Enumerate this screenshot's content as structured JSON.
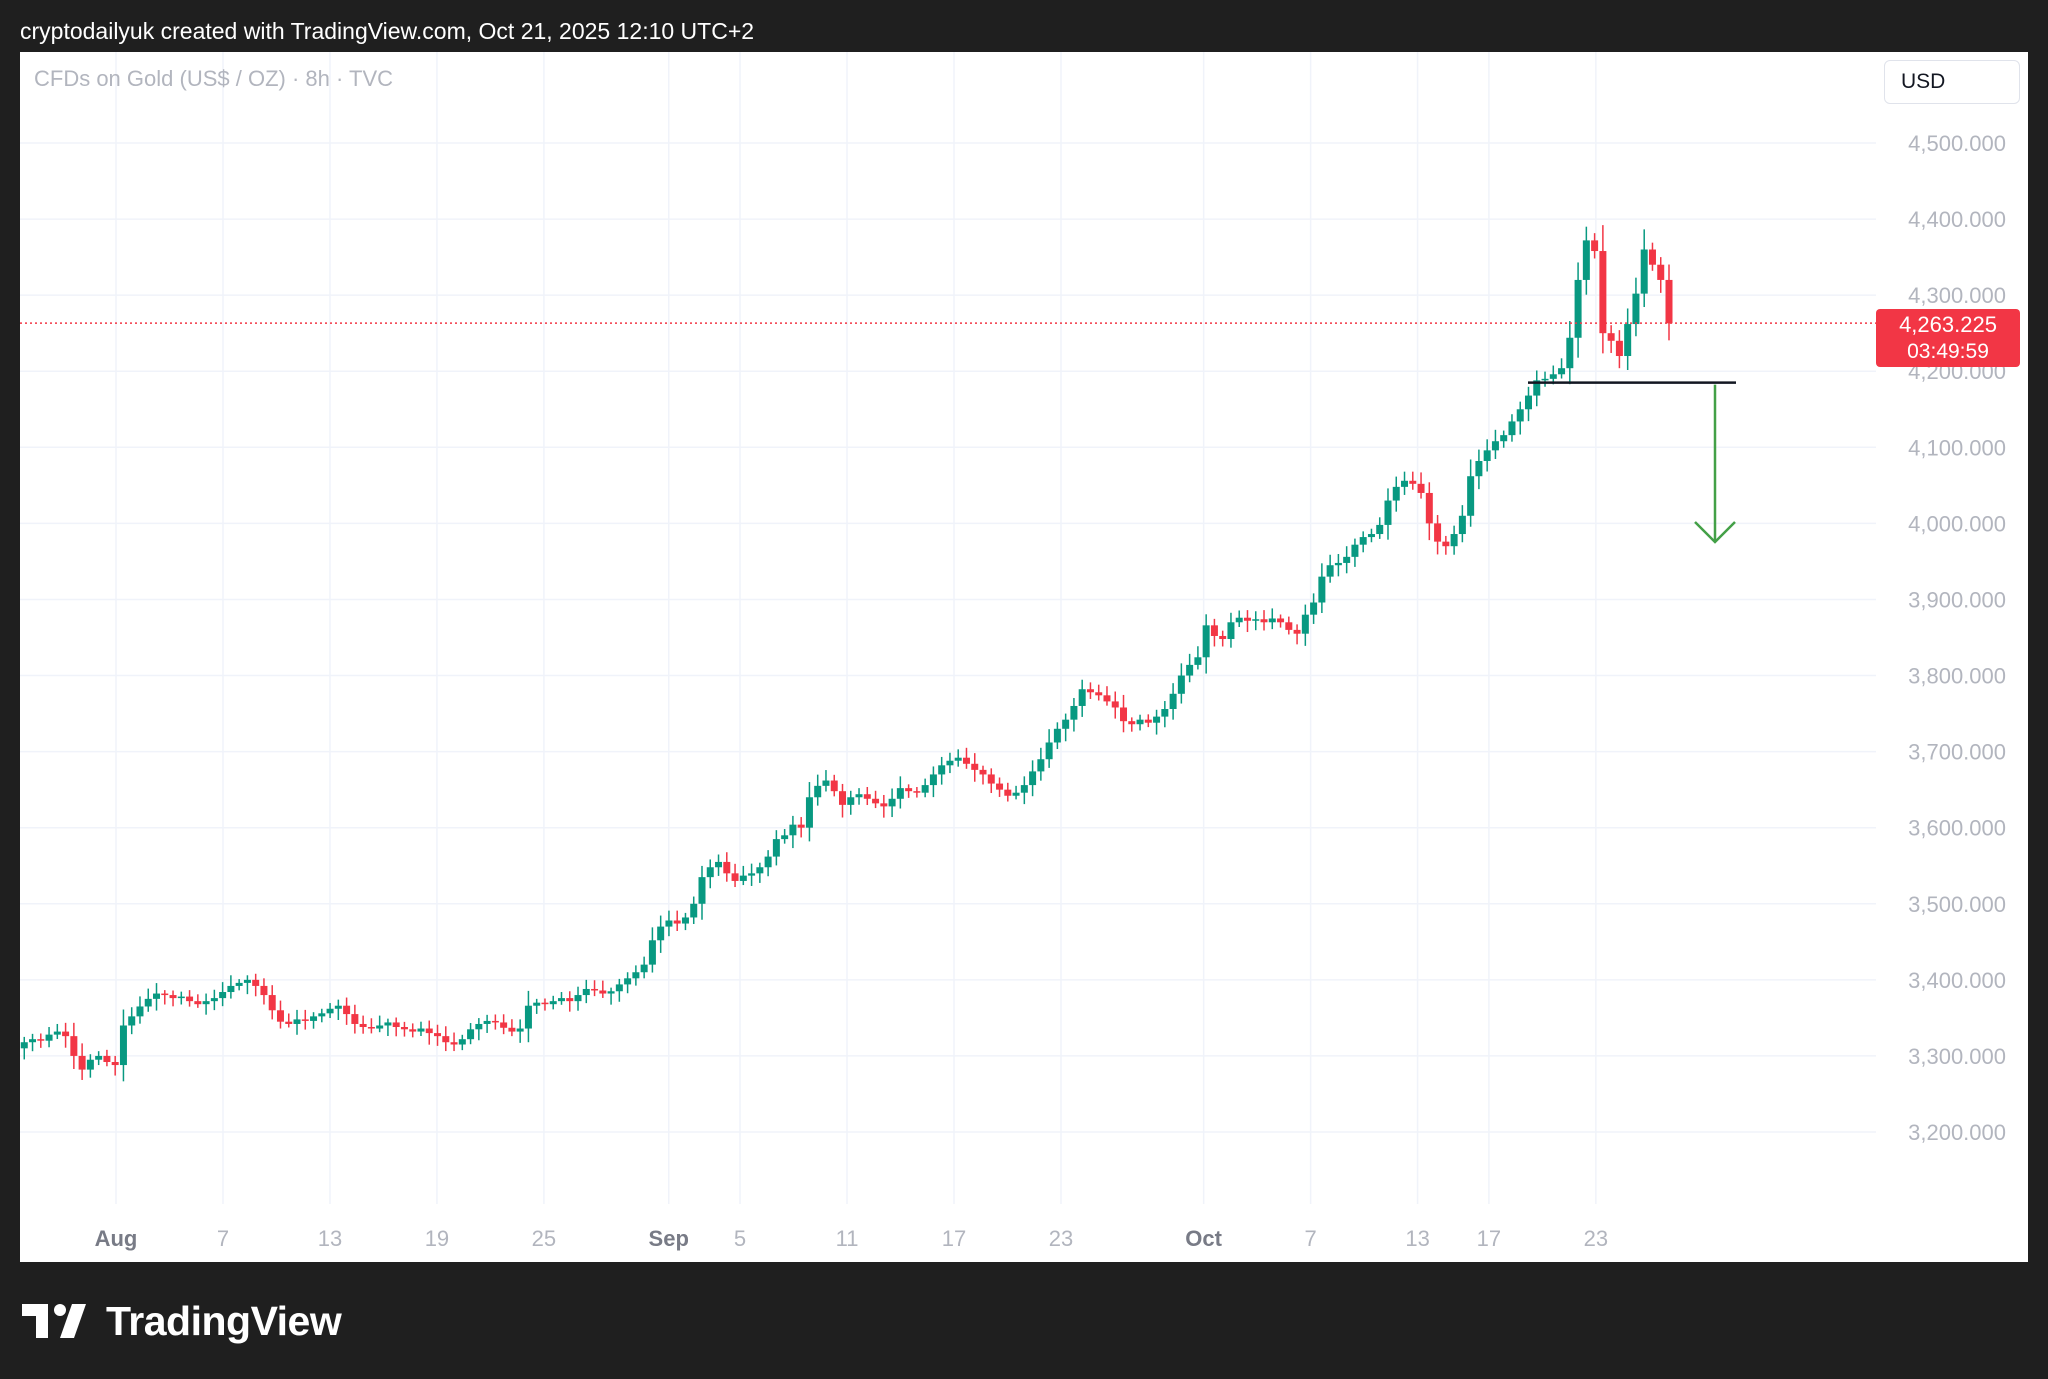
{
  "header": {
    "text": "cryptodailyuk created with TradingView.com, Oct 21, 2025 12:10 UTC+2"
  },
  "symbol_info": "CFDs on Gold (US$ / OZ) · 8h · TVC",
  "currency_label": "USD",
  "last_price": {
    "value": "4,263.225",
    "countdown": "03:49:59"
  },
  "footer": {
    "logo_text": "TradingView",
    "logo_icon": "tradingview-logo-icon"
  },
  "colors": {
    "up": "#089981",
    "down": "#f23645",
    "grid": "#f0f3fa",
    "axis_text": "#b2b5be",
    "arrow": "#43a047",
    "support_line": "#131722"
  },
  "chart_data": {
    "type": "candlestick",
    "ylim": [
      3050,
      4600
    ],
    "y_ticks": [
      "4,500.000",
      "4,400.000",
      "4,300.000",
      "4,200.000",
      "4,100.000",
      "4,000.000",
      "3,900.000",
      "3,800.000",
      "3,700.000",
      "3,600.000",
      "3,500.000",
      "3,400.000",
      "3,300.000",
      "3,200.000"
    ],
    "y_tick_values": [
      4500,
      4400,
      4300,
      4200,
      4100,
      4000,
      3900,
      3800,
      3700,
      3600,
      3500,
      3400,
      3300,
      3200
    ],
    "x_ticks": [
      {
        "label": "Aug",
        "bold": true,
        "day": 0
      },
      {
        "label": "7",
        "day": 6
      },
      {
        "label": "13",
        "day": 12
      },
      {
        "label": "19",
        "day": 18
      },
      {
        "label": "25",
        "day": 24
      },
      {
        "label": "Sep",
        "bold": true,
        "day": 31
      },
      {
        "label": "5",
        "day": 35
      },
      {
        "label": "11",
        "day": 41
      },
      {
        "label": "17",
        "day": 47
      },
      {
        "label": "23",
        "day": 53
      },
      {
        "label": "Oct",
        "bold": true,
        "day": 61
      },
      {
        "label": "7",
        "day": 67
      },
      {
        "label": "13",
        "day": 73
      },
      {
        "label": "17",
        "day": 77
      },
      {
        "label": "23",
        "day": 83
      }
    ],
    "current_price": 4263.225,
    "support_level": 4185,
    "target_level": 3990,
    "closes": [
      3310,
      3318,
      3322,
      3320,
      3328,
      3332,
      3326,
      3300,
      3282,
      3295,
      3300,
      3292,
      3288,
      3340,
      3352,
      3365,
      3375,
      3382,
      3380,
      3376,
      3378,
      3372,
      3368,
      3372,
      3376,
      3384,
      3392,
      3396,
      3400,
      3392,
      3380,
      3360,
      3345,
      3342,
      3348,
      3346,
      3352,
      3356,
      3362,
      3366,
      3355,
      3342,
      3338,
      3336,
      3340,
      3344,
      3338,
      3335,
      3332,
      3336,
      3330,
      3326,
      3318,
      3315,
      3322,
      3335,
      3342,
      3346,
      3344,
      3337,
      3332,
      3336,
      3366,
      3370,
      3368,
      3372,
      3376,
      3372,
      3380,
      3388,
      3386,
      3382,
      3385,
      3394,
      3402,
      3410,
      3420,
      3452,
      3470,
      3478,
      3474,
      3482,
      3500,
      3535,
      3548,
      3555,
      3540,
      3530,
      3537,
      3540,
      3548,
      3562,
      3585,
      3590,
      3604,
      3600,
      3640,
      3655,
      3662,
      3648,
      3630,
      3640,
      3644,
      3638,
      3632,
      3628,
      3638,
      3652,
      3648,
      3646,
      3656,
      3670,
      3682,
      3688,
      3692,
      3684,
      3676,
      3670,
      3658,
      3650,
      3642,
      3646,
      3656,
      3674,
      3690,
      3712,
      3730,
      3742,
      3760,
      3782,
      3778,
      3774,
      3766,
      3758,
      3740,
      3736,
      3742,
      3738,
      3746,
      3756,
      3776,
      3800,
      3814,
      3824,
      3866,
      3852,
      3848,
      3870,
      3876,
      3872,
      3874,
      3870,
      3875,
      3870,
      3860,
      3855,
      3880,
      3896,
      3930,
      3945,
      3948,
      3956,
      3972,
      3982,
      3986,
      3998,
      4030,
      4048,
      4056,
      4052,
      4040,
      4000,
      3976,
      3970,
      3986,
      4010,
      4062,
      4082,
      4096,
      4108,
      4116,
      4134,
      4150,
      4168,
      4188,
      4190,
      4196,
      4204,
      4244,
      4320,
      4372,
      4358,
      4250,
      4240,
      4220,
      4262,
      4302,
      4360,
      4340,
      4320,
      4263
    ]
  }
}
